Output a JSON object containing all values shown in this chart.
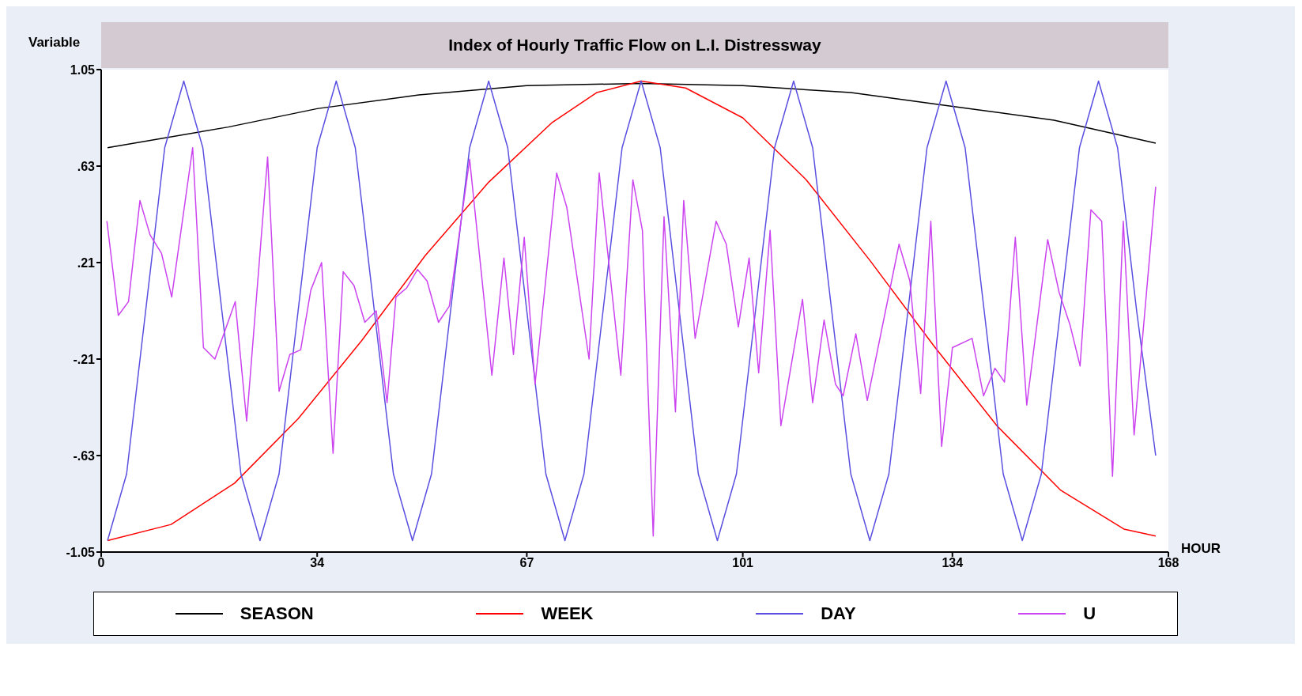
{
  "chart_data": {
    "type": "line",
    "title": "Index of Hourly Traffic Flow on L.I. Distressway",
    "xlabel": "HOUR",
    "ylabel": "Variable",
    "xlim": [
      0,
      168
    ],
    "xticks": [
      0,
      34,
      67,
      101,
      134,
      168
    ],
    "ylim": [
      -1.05,
      1.05
    ],
    "yticks": [
      {
        "value": 1.05,
        "label": "1.05"
      },
      {
        "value": 0.63,
        "label": ".63"
      },
      {
        "value": 0.21,
        "label": ".21"
      },
      {
        "value": -0.21,
        "label": "-.21"
      },
      {
        "value": -0.63,
        "label": "-.63"
      },
      {
        "value": -1.05,
        "label": "-1.05"
      }
    ],
    "legend": "bottom",
    "series": [
      {
        "name": "SEASON",
        "color": "#000000",
        "x": [
          1,
          20,
          34,
          50,
          67,
          85,
          101,
          118,
          134,
          150,
          166
        ],
        "values": [
          0.71,
          0.8,
          0.88,
          0.94,
          0.98,
          0.99,
          0.98,
          0.95,
          0.89,
          0.83,
          0.73
        ]
      },
      {
        "name": "WEEK",
        "color": "#ff0000",
        "x": [
          1,
          11,
          21,
          31,
          41,
          51,
          61,
          71,
          78,
          85,
          92,
          101,
          111,
          121,
          131,
          141,
          151,
          161,
          166
        ],
        "values": [
          -1.0,
          -0.93,
          -0.75,
          -0.47,
          -0.13,
          0.24,
          0.56,
          0.82,
          0.95,
          1.0,
          0.97,
          0.84,
          0.57,
          0.22,
          -0.15,
          -0.5,
          -0.78,
          -0.95,
          -0.98
        ]
      },
      {
        "name": "DAY",
        "color": "#5a4fe0",
        "x": [
          1,
          4,
          7,
          10,
          13,
          16,
          19,
          22,
          25,
          28,
          31,
          34,
          37,
          40,
          43,
          46,
          49,
          52,
          55,
          58,
          61,
          64,
          67,
          70,
          73,
          76,
          79,
          82,
          85,
          88,
          91,
          94,
          97,
          100,
          103,
          106,
          109,
          112,
          115,
          118,
          121,
          124,
          127,
          130,
          133,
          136,
          139,
          142,
          145,
          148,
          151,
          154,
          157,
          160,
          163,
          166
        ],
        "values": [
          -1.0,
          -0.71,
          0.0,
          0.71,
          1.0,
          0.71,
          0.0,
          -0.71,
          -1.0,
          -0.71,
          0.0,
          0.71,
          1.0,
          0.71,
          0.0,
          -0.71,
          -1.0,
          -0.71,
          0.0,
          0.71,
          1.0,
          0.71,
          0.0,
          -0.71,
          -1.0,
          -0.71,
          0.0,
          0.71,
          1.0,
          0.71,
          0.0,
          -0.71,
          -1.0,
          -0.71,
          0.0,
          0.71,
          1.0,
          0.71,
          0.0,
          -0.71,
          -1.0,
          -0.71,
          0.0,
          0.71,
          1.0,
          0.71,
          0.0,
          -0.71,
          -1.0,
          -0.71,
          0.0,
          0.71,
          1.0,
          0.71,
          0.0,
          -0.63
        ]
      },
      {
        "name": "U",
        "color": "#cc44f0",
        "x": [
          0.9,
          2.7,
          4.3,
          6.1,
          7.7,
          9.5,
          11.1,
          14.4,
          16.1,
          17.9,
          21.1,
          22.9,
          26.2,
          28.0,
          29.7,
          31.4,
          33.0,
          34.7,
          36.5,
          38.1,
          39.8,
          41.5,
          43.3,
          45.0,
          46.4,
          48.1,
          49.8,
          51.3,
          53.1,
          54.8,
          58.0,
          61.5,
          63.4,
          64.9,
          66.6,
          68.3,
          71.7,
          73.3,
          76.8,
          78.4,
          81.8,
          83.7,
          85.2,
          86.9,
          88.6,
          90.4,
          91.7,
          93.5,
          96.8,
          98.4,
          100.3,
          102.0,
          103.5,
          105.3,
          107.0,
          110.4,
          112.0,
          113.8,
          115.6,
          116.8,
          118.8,
          120.6,
          125.6,
          127.3,
          129.0,
          130.6,
          132.3,
          134.0,
          137.1,
          138.9,
          140.7,
          142.2,
          143.9,
          145.7,
          149.0,
          150.8,
          152.5,
          154.1,
          155.8,
          157.5,
          159.2,
          160.9,
          162.6,
          166.0
        ],
        "values": [
          0.39,
          -0.02,
          0.04,
          0.48,
          0.33,
          0.25,
          0.06,
          0.71,
          -0.16,
          -0.21,
          0.04,
          -0.48,
          0.67,
          -0.35,
          -0.19,
          -0.17,
          0.09,
          0.21,
          -0.62,
          0.17,
          0.11,
          -0.05,
          0.0,
          -0.4,
          0.06,
          0.1,
          0.18,
          0.13,
          -0.05,
          0.02,
          0.66,
          -0.28,
          0.23,
          -0.19,
          0.32,
          -0.32,
          0.6,
          0.45,
          -0.21,
          0.6,
          -0.28,
          0.57,
          0.35,
          -0.98,
          0.41,
          -0.44,
          0.48,
          -0.12,
          0.39,
          0.29,
          -0.07,
          0.23,
          -0.27,
          0.35,
          -0.5,
          0.05,
          -0.4,
          -0.04,
          -0.32,
          -0.37,
          -0.1,
          -0.39,
          0.29,
          0.13,
          -0.36,
          0.39,
          -0.59,
          -0.16,
          -0.12,
          -0.37,
          -0.25,
          -0.31,
          0.32,
          -0.41,
          0.31,
          0.08,
          -0.06,
          -0.24,
          0.44,
          0.39,
          -0.72,
          0.39,
          -0.54,
          0.54
        ]
      }
    ]
  }
}
